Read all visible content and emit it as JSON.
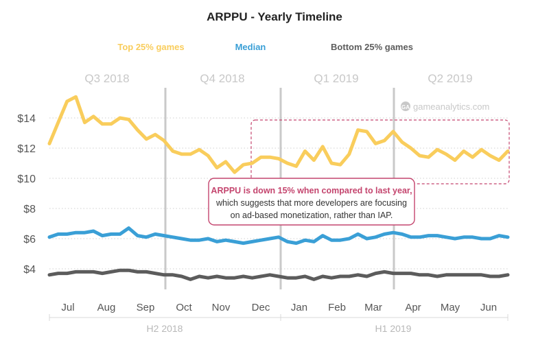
{
  "chart_data": {
    "type": "line",
    "title": "ARPPU - Yearly Timeline",
    "watermark": "gameanalytics.com",
    "ylim": [
      3,
      15
    ],
    "yticks": [
      {
        "value": 4,
        "label": "$4"
      },
      {
        "value": 6,
        "label": "$6"
      },
      {
        "value": 8,
        "label": "$8"
      },
      {
        "value": 10,
        "label": "$10"
      },
      {
        "value": 12,
        "label": "$12"
      },
      {
        "value": 14,
        "label": "$14"
      }
    ],
    "grid": true,
    "months": [
      "Jul",
      "Aug",
      "Sep",
      "Oct",
      "Nov",
      "Dec",
      "Jan",
      "Feb",
      "Mar",
      "Apr",
      "May",
      "Jun"
    ],
    "quarters": [
      "Q3 2018",
      "Q4 2018",
      "Q1 2019",
      "Q2 2019"
    ],
    "halves": [
      "H2 2018",
      "H1 2019"
    ],
    "legend_position": "top",
    "series": [
      {
        "name": "Top 25% games",
        "color": "#F9CD5C",
        "values": [
          12.3,
          13.7,
          15.1,
          15.4,
          13.7,
          14.1,
          13.6,
          13.6,
          14.0,
          13.9,
          13.2,
          12.6,
          12.9,
          12.5,
          11.8,
          11.6,
          11.6,
          11.9,
          11.5,
          10.7,
          11.1,
          10.4,
          10.9,
          11.0,
          11.4,
          11.4,
          11.3,
          11.0,
          10.8,
          11.8,
          11.2,
          12.1,
          11.0,
          10.9,
          11.6,
          13.2,
          13.1,
          12.3,
          12.5,
          13.1,
          12.4,
          12.0,
          11.5,
          11.4,
          11.9,
          11.6,
          11.2,
          11.8,
          11.4,
          11.9,
          11.5,
          11.2,
          11.8
        ]
      },
      {
        "name": "Median",
        "color": "#3A9FD6",
        "values": [
          6.1,
          6.3,
          6.3,
          6.4,
          6.4,
          6.5,
          6.2,
          6.3,
          6.3,
          6.7,
          6.2,
          6.1,
          6.3,
          6.2,
          6.1,
          6.0,
          5.9,
          5.9,
          6.0,
          5.8,
          5.9,
          5.8,
          5.7,
          5.8,
          5.9,
          6.0,
          6.1,
          5.8,
          5.7,
          5.9,
          5.8,
          6.2,
          5.9,
          5.9,
          6.0,
          6.3,
          6.0,
          6.1,
          6.3,
          6.4,
          6.3,
          6.1,
          6.1,
          6.2,
          6.2,
          6.1,
          6.0,
          6.1,
          6.1,
          6.0,
          6.0,
          6.2,
          6.1
        ]
      },
      {
        "name": "Bottom 25% games",
        "color": "#5C5C5C",
        "values": [
          3.6,
          3.7,
          3.7,
          3.8,
          3.8,
          3.8,
          3.7,
          3.8,
          3.9,
          3.9,
          3.8,
          3.8,
          3.7,
          3.6,
          3.6,
          3.5,
          3.3,
          3.5,
          3.4,
          3.5,
          3.4,
          3.4,
          3.5,
          3.4,
          3.5,
          3.6,
          3.5,
          3.4,
          3.4,
          3.5,
          3.3,
          3.5,
          3.4,
          3.5,
          3.5,
          3.6,
          3.5,
          3.7,
          3.8,
          3.7,
          3.7,
          3.7,
          3.6,
          3.6,
          3.5,
          3.6,
          3.6,
          3.6,
          3.6,
          3.6,
          3.5,
          3.5,
          3.6
        ]
      }
    ],
    "annotation": {
      "highlight": "ARPPU is down 15% when compared to last year,",
      "lines": [
        "which suggests that more developers are focusing",
        "on ad-based monetization, rather than IAP."
      ],
      "color": "#C4456E"
    }
  }
}
